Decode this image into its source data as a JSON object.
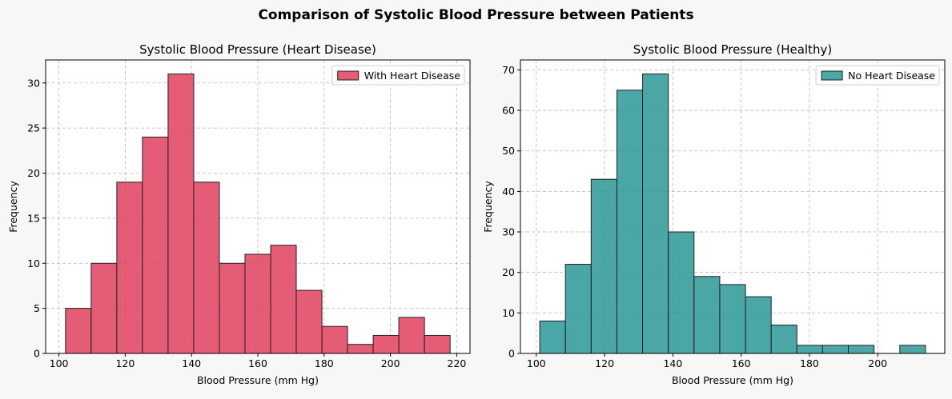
{
  "figure": {
    "suptitle": "Comparison of Systolic Blood Pressure between Patients",
    "background": "#f7f7f7"
  },
  "chart_data": [
    {
      "type": "bar",
      "title": "Systolic Blood Pressure (Heart Disease)",
      "xlabel": "Blood Pressure (mm Hg)",
      "ylabel": "Frequency",
      "xlim": [
        96,
        224
      ],
      "ylim": [
        0,
        32.55
      ],
      "xticks": [
        100,
        120,
        140,
        160,
        180,
        200,
        220
      ],
      "yticks": [
        0,
        5,
        10,
        15,
        20,
        25,
        30
      ],
      "grid": true,
      "legend_position": "top-right",
      "color": "#e0405f",
      "series": [
        {
          "name": "With Heart Disease",
          "bin_edges": [
            102,
            109.73,
            117.47,
            125.2,
            132.93,
            140.67,
            148.4,
            156.13,
            163.87,
            171.6,
            179.33,
            187.07,
            194.8,
            202.53,
            210.27,
            218
          ],
          "values": [
            5,
            10,
            19,
            24,
            31,
            19,
            10,
            11,
            12,
            7,
            3,
            1,
            2,
            4,
            2
          ]
        }
      ]
    },
    {
      "type": "bar",
      "title": "Systolic Blood Pressure (Healthy)",
      "xlabel": "Blood Pressure (mm Hg)",
      "ylabel": "Frequency",
      "xlim": [
        95.35,
        219.65
      ],
      "ylim": [
        0,
        72.45
      ],
      "xticks": [
        100,
        120,
        140,
        160,
        180,
        200
      ],
      "yticks": [
        0,
        10,
        20,
        30,
        40,
        50,
        60,
        70
      ],
      "grid": true,
      "legend_position": "top-right",
      "color": "#2a9895",
      "series": [
        {
          "name": "No Heart Disease",
          "bin_edges": [
            101,
            108.53,
            116.07,
            123.6,
            131.13,
            138.67,
            146.2,
            153.73,
            161.27,
            168.8,
            176.33,
            183.87,
            191.4,
            198.93,
            206.47,
            214
          ],
          "values": [
            8,
            22,
            43,
            65,
            69,
            30,
            19,
            17,
            14,
            7,
            2,
            2,
            2,
            0,
            2
          ]
        }
      ]
    }
  ]
}
